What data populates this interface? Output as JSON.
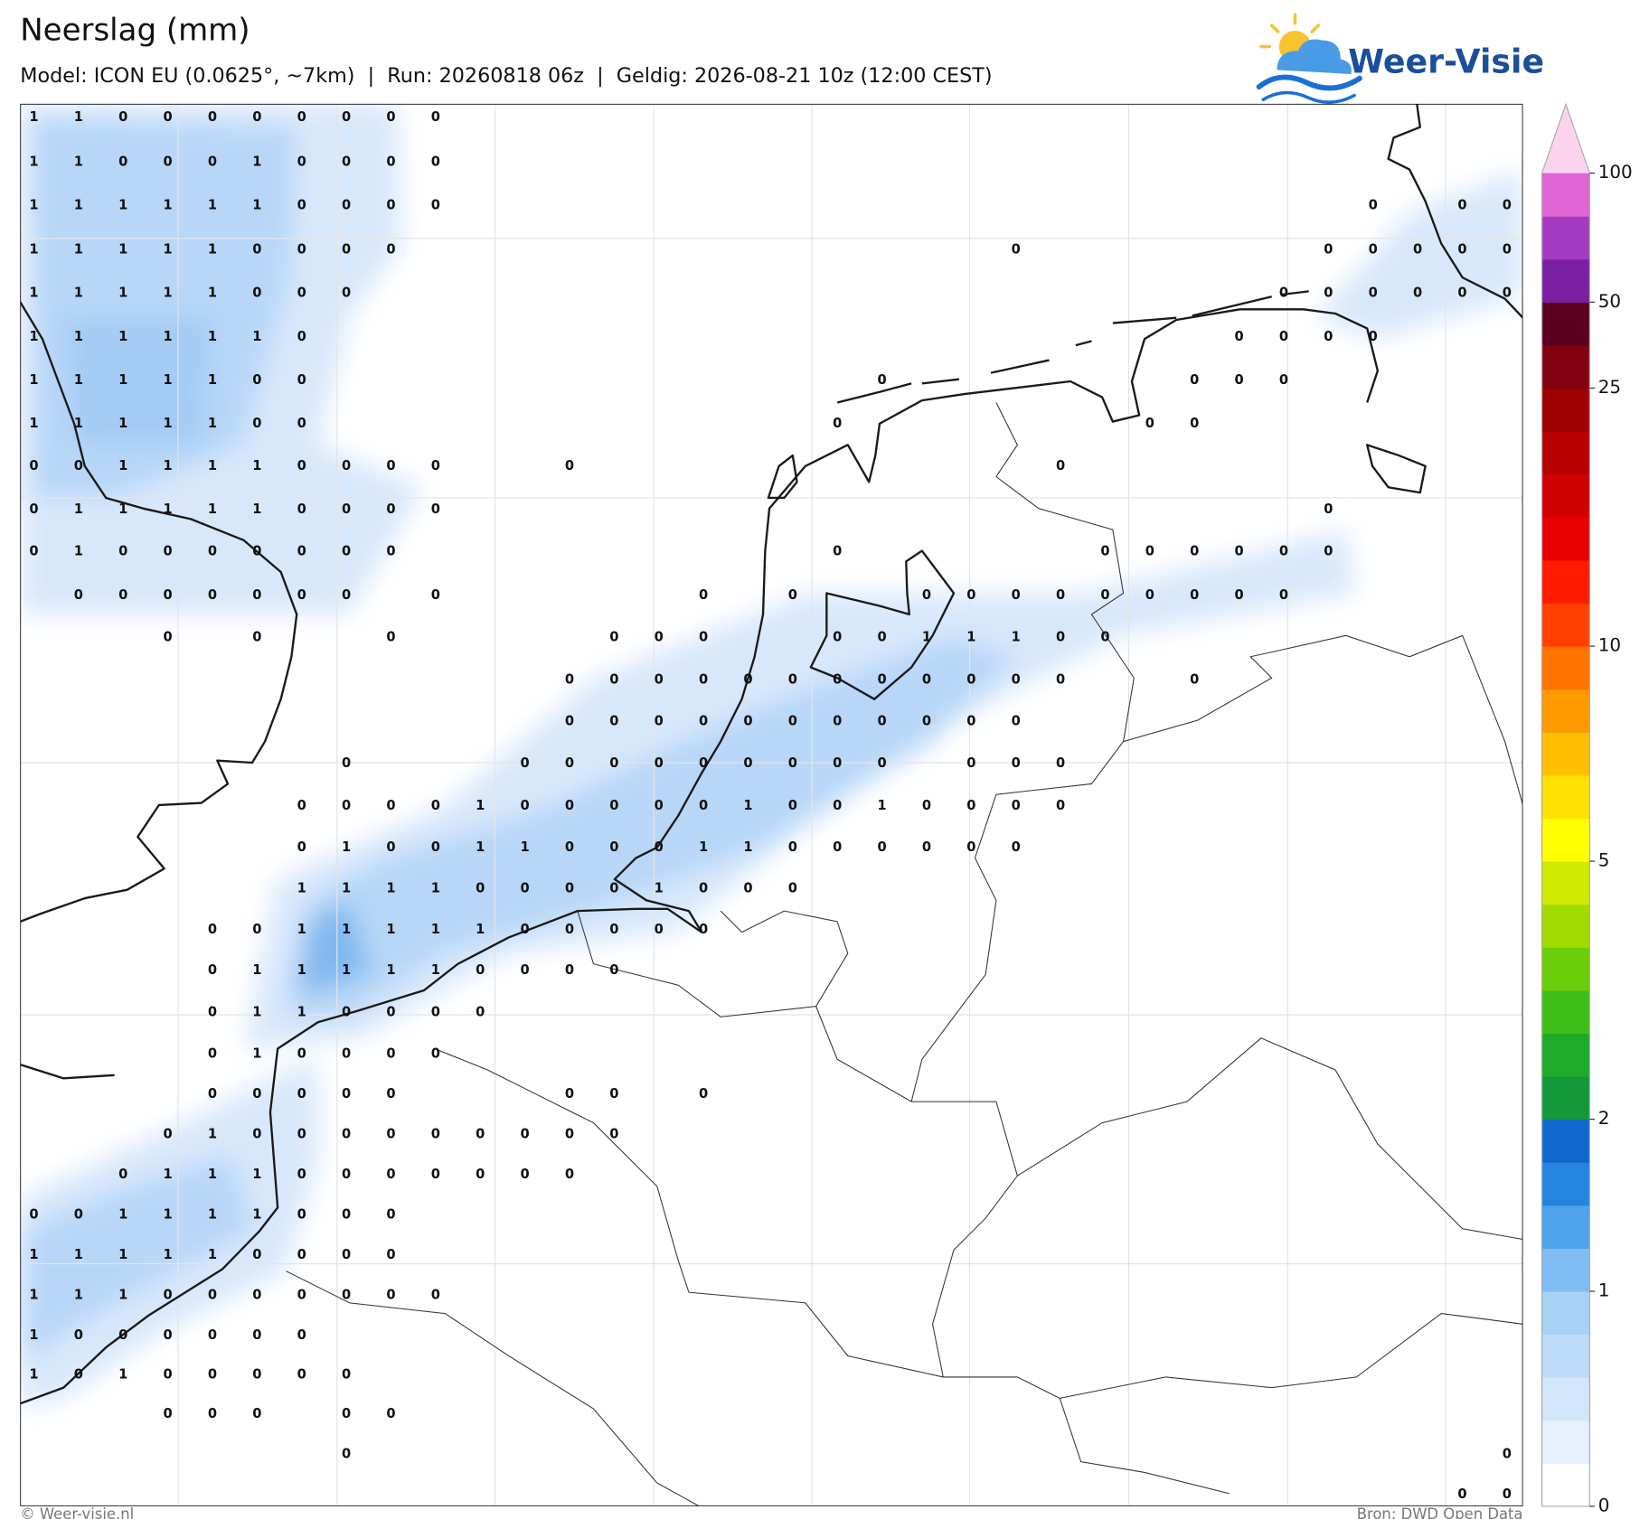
{
  "header": {
    "title": "Neerslag (mm)",
    "subtitle": "Model: ICON EU (0.0625°, ~7km)  |  Run: 20260818 06z  |  Geldig: 2026-08-21 10z (12:00 CEST)"
  },
  "logo": {
    "text": "Weer-Visie"
  },
  "map": {
    "values": [
      [
        1,
        1,
        0,
        0,
        0,
        0,
        0,
        0,
        0,
        0,
        null,
        null,
        null,
        null,
        null,
        null,
        null,
        null,
        null,
        null,
        null,
        null,
        null,
        null,
        null,
        null,
        null,
        null,
        null,
        null,
        null,
        null,
        null,
        null
      ],
      [
        1,
        1,
        0,
        0,
        0,
        1,
        0,
        0,
        0,
        0,
        null,
        null,
        null,
        null,
        null,
        null,
        null,
        null,
        null,
        null,
        null,
        null,
        null,
        null,
        null,
        null,
        null,
        null,
        null,
        null,
        null,
        null,
        null,
        null
      ],
      [
        1,
        1,
        1,
        1,
        1,
        1,
        0,
        0,
        0,
        0,
        null,
        null,
        null,
        null,
        null,
        null,
        null,
        null,
        null,
        null,
        null,
        null,
        null,
        null,
        null,
        null,
        null,
        null,
        null,
        null,
        0,
        null,
        0,
        0
      ],
      [
        1,
        1,
        1,
        1,
        1,
        0,
        0,
        0,
        0,
        null,
        null,
        null,
        null,
        null,
        null,
        null,
        null,
        null,
        null,
        null,
        null,
        null,
        0,
        null,
        null,
        null,
        null,
        null,
        null,
        0,
        0,
        0,
        0,
        0
      ],
      [
        1,
        1,
        1,
        1,
        1,
        0,
        0,
        0,
        null,
        null,
        null,
        null,
        null,
        null,
        null,
        null,
        null,
        null,
        null,
        null,
        null,
        null,
        null,
        null,
        null,
        null,
        null,
        null,
        0,
        0,
        0,
        0,
        0,
        0
      ],
      [
        1,
        1,
        1,
        1,
        1,
        1,
        0,
        null,
        null,
        null,
        null,
        null,
        null,
        null,
        null,
        null,
        null,
        null,
        null,
        null,
        null,
        null,
        null,
        null,
        null,
        null,
        null,
        0,
        0,
        0,
        0,
        null,
        null,
        null
      ],
      [
        1,
        1,
        1,
        1,
        1,
        0,
        0,
        null,
        null,
        null,
        null,
        null,
        null,
        null,
        null,
        null,
        null,
        null,
        null,
        0,
        null,
        null,
        null,
        null,
        null,
        null,
        0,
        0,
        0,
        null,
        null,
        null,
        null,
        null
      ],
      [
        1,
        1,
        1,
        1,
        1,
        0,
        0,
        null,
        null,
        null,
        null,
        null,
        null,
        null,
        null,
        null,
        null,
        null,
        0,
        null,
        null,
        null,
        null,
        null,
        null,
        0,
        0,
        null,
        null,
        null,
        null,
        null,
        null,
        null
      ],
      [
        0,
        0,
        1,
        1,
        1,
        1,
        0,
        0,
        0,
        0,
        null,
        null,
        0,
        null,
        null,
        null,
        null,
        null,
        null,
        null,
        null,
        null,
        null,
        0,
        null,
        null,
        null,
        null,
        null,
        null,
        null,
        null,
        null,
        null
      ],
      [
        0,
        1,
        1,
        1,
        1,
        1,
        0,
        0,
        0,
        0,
        null,
        null,
        null,
        null,
        null,
        null,
        null,
        null,
        null,
        null,
        null,
        null,
        null,
        null,
        null,
        null,
        null,
        null,
        null,
        0,
        null,
        null,
        null,
        null
      ],
      [
        0,
        1,
        0,
        0,
        0,
        0,
        0,
        0,
        0,
        null,
        null,
        null,
        null,
        null,
        null,
        null,
        null,
        null,
        0,
        null,
        null,
        null,
        null,
        null,
        0,
        0,
        0,
        0,
        0,
        0,
        null,
        null,
        null,
        null
      ],
      [
        null,
        0,
        0,
        0,
        0,
        0,
        0,
        0,
        null,
        0,
        null,
        null,
        null,
        null,
        null,
        0,
        null,
        0,
        null,
        null,
        0,
        0,
        0,
        0,
        0,
        0,
        0,
        0,
        0,
        null,
        null,
        null,
        null,
        null
      ],
      [
        null,
        null,
        null,
        0,
        null,
        0,
        null,
        null,
        0,
        null,
        null,
        null,
        null,
        0,
        0,
        0,
        null,
        null,
        0,
        0,
        1,
        1,
        1,
        0,
        0,
        null,
        null,
        null,
        null,
        null,
        null,
        null,
        null,
        null
      ],
      [
        null,
        null,
        null,
        null,
        null,
        null,
        null,
        null,
        null,
        null,
        null,
        null,
        0,
        0,
        0,
        0,
        0,
        0,
        0,
        0,
        0,
        0,
        0,
        0,
        null,
        null,
        0,
        null,
        null,
        null,
        null,
        null,
        null,
        null
      ],
      [
        null,
        null,
        null,
        null,
        null,
        null,
        null,
        null,
        null,
        null,
        null,
        null,
        0,
        0,
        0,
        0,
        0,
        0,
        0,
        0,
        0,
        0,
        0,
        null,
        null,
        null,
        null,
        null,
        null,
        null,
        null,
        null,
        null,
        null
      ],
      [
        null,
        null,
        null,
        null,
        null,
        null,
        null,
        0,
        null,
        null,
        null,
        0,
        0,
        0,
        0,
        0,
        0,
        0,
        0,
        0,
        null,
        0,
        0,
        0,
        null,
        null,
        null,
        null,
        null,
        null,
        null,
        null,
        null,
        null
      ],
      [
        null,
        null,
        null,
        null,
        null,
        null,
        0,
        0,
        0,
        0,
        1,
        0,
        0,
        0,
        0,
        0,
        1,
        0,
        0,
        1,
        0,
        0,
        0,
        0,
        null,
        null,
        null,
        null,
        null,
        null,
        null,
        null,
        null,
        null
      ],
      [
        null,
        null,
        null,
        null,
        null,
        null,
        0,
        1,
        0,
        0,
        1,
        1,
        0,
        0,
        0,
        1,
        1,
        0,
        0,
        0,
        0,
        0,
        0,
        null,
        null,
        null,
        null,
        null,
        null,
        null,
        null,
        null,
        null,
        null
      ],
      [
        null,
        null,
        null,
        null,
        null,
        null,
        1,
        1,
        1,
        1,
        0,
        0,
        0,
        0,
        1,
        0,
        0,
        0,
        null,
        null,
        null,
        null,
        null,
        null,
        null,
        null,
        null,
        null,
        null,
        null,
        null,
        null,
        null,
        null
      ],
      [
        null,
        null,
        null,
        null,
        0,
        0,
        1,
        1,
        1,
        1,
        1,
        0,
        0,
        0,
        0,
        0,
        null,
        null,
        null,
        null,
        null,
        null,
        null,
        null,
        null,
        null,
        null,
        null,
        null,
        null,
        null,
        null,
        null,
        null
      ],
      [
        null,
        null,
        null,
        null,
        0,
        1,
        1,
        1,
        1,
        1,
        0,
        0,
        0,
        0,
        null,
        null,
        null,
        null,
        null,
        null,
        null,
        null,
        null,
        null,
        null,
        null,
        null,
        null,
        null,
        null,
        null,
        null,
        null,
        null
      ],
      [
        null,
        null,
        null,
        null,
        0,
        1,
        1,
        0,
        0,
        0,
        0,
        null,
        null,
        null,
        null,
        null,
        null,
        null,
        null,
        null,
        null,
        null,
        null,
        null,
        null,
        null,
        null,
        null,
        null,
        null,
        null,
        null,
        null,
        null
      ],
      [
        null,
        null,
        null,
        null,
        0,
        1,
        0,
        0,
        0,
        0,
        null,
        null,
        null,
        null,
        null,
        null,
        null,
        null,
        null,
        null,
        null,
        null,
        null,
        null,
        null,
        null,
        null,
        null,
        null,
        null,
        null,
        null,
        null,
        null
      ],
      [
        null,
        null,
        null,
        null,
        0,
        0,
        0,
        0,
        0,
        null,
        null,
        null,
        0,
        0,
        null,
        0,
        null,
        null,
        null,
        null,
        null,
        null,
        null,
        null,
        null,
        null,
        null,
        null,
        null,
        null,
        null,
        null,
        null,
        null
      ],
      [
        null,
        null,
        null,
        0,
        1,
        0,
        0,
        0,
        0,
        0,
        0,
        0,
        0,
        0,
        null,
        null,
        null,
        null,
        null,
        null,
        null,
        null,
        null,
        null,
        null,
        null,
        null,
        null,
        null,
        null,
        null,
        null,
        null,
        null
      ],
      [
        null,
        null,
        0,
        1,
        1,
        1,
        0,
        0,
        0,
        0,
        0,
        0,
        0,
        null,
        null,
        null,
        null,
        null,
        null,
        null,
        null,
        null,
        null,
        null,
        null,
        null,
        null,
        null,
        null,
        null,
        null,
        null,
        null,
        null
      ],
      [
        0,
        0,
        1,
        1,
        1,
        1,
        0,
        0,
        0,
        null,
        null,
        null,
        null,
        null,
        null,
        null,
        null,
        null,
        null,
        null,
        null,
        null,
        null,
        null,
        null,
        null,
        null,
        null,
        null,
        null,
        null,
        null,
        null,
        null
      ],
      [
        1,
        1,
        1,
        1,
        1,
        0,
        0,
        0,
        0,
        null,
        null,
        null,
        null,
        null,
        null,
        null,
        null,
        null,
        null,
        null,
        null,
        null,
        null,
        null,
        null,
        null,
        null,
        null,
        null,
        null,
        null,
        null,
        null,
        null
      ],
      [
        1,
        1,
        1,
        0,
        0,
        0,
        0,
        0,
        0,
        0,
        null,
        null,
        null,
        null,
        null,
        null,
        null,
        null,
        null,
        null,
        null,
        null,
        null,
        null,
        null,
        null,
        null,
        null,
        null,
        null,
        null,
        null,
        null,
        null
      ],
      [
        1,
        0,
        0,
        0,
        0,
        0,
        0,
        null,
        null,
        null,
        null,
        null,
        null,
        null,
        null,
        null,
        null,
        null,
        null,
        null,
        null,
        null,
        null,
        null,
        null,
        null,
        null,
        null,
        null,
        null,
        null,
        null,
        null,
        null
      ],
      [
        1,
        0,
        1,
        0,
        0,
        0,
        0,
        0,
        null,
        null,
        null,
        null,
        null,
        null,
        null,
        null,
        null,
        null,
        null,
        null,
        null,
        null,
        null,
        null,
        null,
        null,
        null,
        null,
        null,
        null,
        null,
        null,
        null,
        null
      ],
      [
        null,
        null,
        null,
        0,
        0,
        0,
        null,
        0,
        0,
        null,
        null,
        null,
        null,
        null,
        null,
        null,
        null,
        null,
        null,
        null,
        null,
        null,
        null,
        null,
        null,
        null,
        null,
        null,
        null,
        null,
        null,
        null,
        null,
        null
      ],
      [
        null,
        null,
        null,
        null,
        null,
        null,
        null,
        0,
        null,
        null,
        null,
        null,
        null,
        null,
        null,
        null,
        null,
        null,
        null,
        null,
        null,
        null,
        null,
        null,
        null,
        null,
        null,
        null,
        null,
        null,
        null,
        null,
        null,
        0
      ],
      [
        null,
        null,
        null,
        null,
        null,
        null,
        null,
        null,
        null,
        null,
        null,
        null,
        null,
        null,
        null,
        null,
        null,
        null,
        null,
        null,
        null,
        null,
        null,
        null,
        null,
        null,
        null,
        null,
        null,
        null,
        null,
        null,
        0,
        0
      ]
    ]
  },
  "colorbar": {
    "colors": [
      "#ffffff",
      "#e6f1fd",
      "#d3e7fb",
      "#bfddf9",
      "#a8d1f7",
      "#7fbcf2",
      "#4ea3ea",
      "#2484e0",
      "#0f66cc",
      "#13983a",
      "#1fab2a",
      "#3fbf18",
      "#6ccd0a",
      "#a0dc00",
      "#cfea00",
      "#ffff00",
      "#ffe100",
      "#ffbf00",
      "#ff9a00",
      "#ff7300",
      "#ff4000",
      "#ff1a00",
      "#e80000",
      "#d00000",
      "#b80000",
      "#a00000",
      "#820010",
      "#5c0020",
      "#7b1fa2",
      "#a33cc0",
      "#e066d6"
    ],
    "extend_color": "#fbd3ef",
    "ticks": [
      0,
      1,
      2,
      5,
      10,
      25,
      50,
      100
    ]
  },
  "footer": {
    "left": "© Weer-visie.nl",
    "right": "Bron: DWD Open Data"
  }
}
